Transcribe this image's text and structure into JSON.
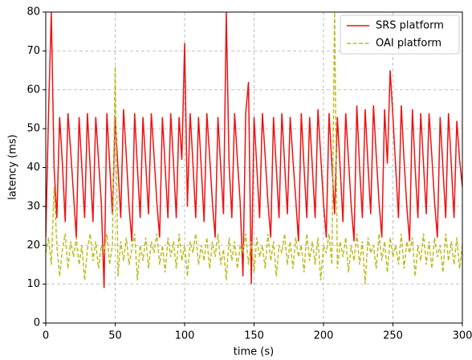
{
  "chart_data": {
    "type": "line",
    "xlabel": "time (s)",
    "ylabel": "latency (ms)",
    "x": [
      0,
      2,
      4,
      6,
      8,
      10,
      12,
      14,
      16,
      18,
      20,
      22,
      24,
      26,
      28,
      30,
      32,
      34,
      36,
      38,
      40,
      42,
      44,
      46,
      48,
      50,
      52,
      54,
      56,
      58,
      60,
      62,
      64,
      66,
      68,
      70,
      72,
      74,
      76,
      78,
      80,
      82,
      84,
      86,
      88,
      90,
      92,
      94,
      96,
      98,
      100,
      102,
      104,
      106,
      108,
      110,
      112,
      114,
      116,
      118,
      120,
      122,
      124,
      126,
      128,
      130,
      132,
      134,
      136,
      138,
      140,
      142,
      144,
      146,
      148,
      150,
      152,
      154,
      156,
      158,
      160,
      162,
      164,
      166,
      168,
      170,
      172,
      174,
      176,
      178,
      180,
      182,
      184,
      186,
      188,
      190,
      192,
      194,
      196,
      198,
      200,
      202,
      204,
      206,
      208,
      210,
      212,
      214,
      216,
      218,
      220,
      222,
      224,
      226,
      228,
      230,
      232,
      234,
      236,
      238,
      240,
      242,
      244,
      246,
      248,
      250,
      252,
      254,
      256,
      258,
      260,
      262,
      264,
      266,
      268,
      270,
      272,
      274,
      276,
      278,
      280,
      282,
      284,
      286,
      288,
      290,
      292,
      294,
      296,
      298,
      300
    ],
    "series": [
      {
        "name": "SRS platform",
        "color": "#ee1111",
        "dash": "solid",
        "values": [
          22,
          54,
          80,
          40,
          27,
          53,
          41,
          26,
          54,
          44,
          33,
          22,
          53,
          40,
          27,
          54,
          40,
          26,
          53,
          42,
          31,
          9,
          54,
          41,
          28,
          53,
          40,
          27,
          55,
          43,
          30,
          21,
          54,
          40,
          27,
          53,
          41,
          28,
          54,
          43,
          31,
          22,
          53,
          40,
          27,
          54,
          41,
          27,
          53,
          42,
          72,
          30,
          54,
          41,
          27,
          53,
          40,
          26,
          54,
          43,
          31,
          22,
          53,
          40,
          28,
          80,
          41,
          27,
          54,
          42,
          31,
          12,
          54,
          62,
          10,
          53,
          40,
          27,
          54,
          43,
          31,
          22,
          53,
          40,
          27,
          54,
          41,
          28,
          53,
          42,
          32,
          21,
          54,
          40,
          27,
          53,
          40,
          27,
          55,
          43,
          31,
          22,
          54,
          41,
          28,
          53,
          40,
          26,
          54,
          42,
          30,
          21,
          56,
          40,
          27,
          55,
          41,
          28,
          56,
          43,
          31,
          22,
          55,
          41,
          65,
          53,
          40,
          27,
          56,
          42,
          30,
          21,
          55,
          40,
          27,
          54,
          41,
          28,
          54,
          43,
          31,
          22,
          53,
          40,
          27,
          54,
          41,
          27,
          52,
          42,
          35
        ]
      },
      {
        "name": "OAI platform",
        "color": "#bcbd22",
        "dash": "dashed",
        "values": [
          18,
          22,
          15,
          35,
          20,
          12,
          19,
          23,
          14,
          21,
          17,
          22,
          15,
          20,
          11,
          19,
          23,
          16,
          21,
          14,
          20,
          18,
          23,
          15,
          20,
          66,
          12,
          21,
          16,
          22,
          15,
          19,
          23,
          11,
          20,
          16,
          22,
          14,
          21,
          18,
          23,
          15,
          20,
          13,
          22,
          17,
          21,
          14,
          23,
          16,
          20,
          12,
          21,
          18,
          23,
          15,
          20,
          16,
          22,
          14,
          21,
          17,
          23,
          15,
          19,
          11,
          22,
          16,
          21,
          14,
          20,
          18,
          23,
          15,
          21,
          13,
          22,
          17,
          20,
          14,
          23,
          16,
          21,
          12,
          20,
          18,
          23,
          15,
          21,
          14,
          22,
          17,
          20,
          13,
          23,
          16,
          21,
          15,
          22,
          11,
          20,
          18,
          23,
          15,
          80,
          14,
          21,
          17,
          22,
          13,
          20,
          16,
          23,
          15,
          21,
          10,
          22,
          18,
          20,
          14,
          23,
          16,
          21,
          13,
          22,
          17,
          20,
          15,
          23,
          14,
          21,
          18,
          22,
          12,
          20,
          16,
          23,
          15,
          21,
          14,
          22,
          17,
          20,
          13,
          23,
          16,
          21,
          15,
          22,
          14,
          20
        ]
      }
    ],
    "xlim": [
      0,
      300
    ],
    "xticks": [
      0,
      50,
      100,
      150,
      200,
      250,
      300
    ],
    "ylim": [
      0,
      80
    ],
    "yticks": [
      0,
      10,
      20,
      30,
      40,
      50,
      60,
      70,
      80
    ],
    "grid": true,
    "legend": "upper right"
  }
}
